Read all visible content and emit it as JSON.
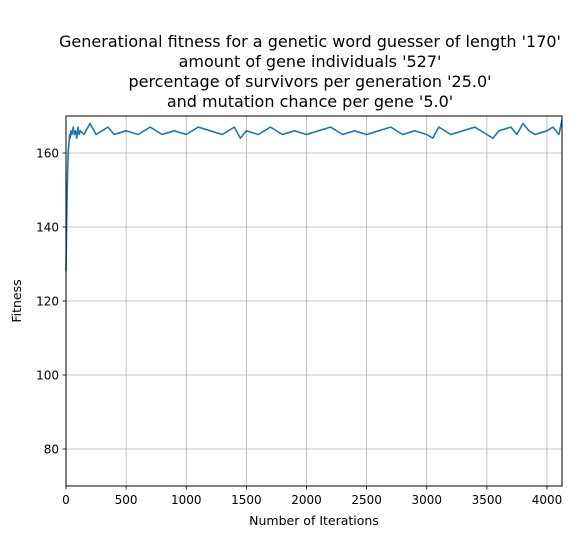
{
  "chart_data": {
    "type": "line",
    "title_lines": [
      "Generational fitness for a genetic word guesser of length '170'",
      "amount of gene individuals '527'",
      "percentage of survivors per generation '25.0'",
      "and mutation chance per gene '5.0'"
    ],
    "xlabel": "Number of Iterations",
    "ylabel": "Fitness",
    "xlim": [
      0,
      4125
    ],
    "ylim": [
      70,
      170
    ],
    "xticks": [
      0,
      500,
      1000,
      1500,
      2000,
      2500,
      3000,
      3500,
      4000
    ],
    "yticks": [
      80,
      100,
      120,
      140,
      160
    ],
    "grid": true,
    "series": [
      {
        "color": "#1f77b4",
        "x": [
          0,
          5,
          10,
          15,
          20,
          25,
          30,
          35,
          40,
          50,
          60,
          70,
          80,
          90,
          100,
          110,
          120,
          150,
          200,
          250,
          300,
          350,
          400,
          500,
          600,
          700,
          800,
          900,
          1000,
          1100,
          1200,
          1300,
          1400,
          1450,
          1500,
          1600,
          1700,
          1800,
          1900,
          2000,
          2100,
          2200,
          2300,
          2400,
          2500,
          2600,
          2700,
          2800,
          2900,
          3000,
          3050,
          3100,
          3200,
          3300,
          3400,
          3500,
          3550,
          3600,
          3700,
          3750,
          3800,
          3850,
          3900,
          4000,
          4050,
          4100,
          4125
        ],
        "y": [
          128,
          140,
          150,
          157,
          161,
          163,
          165,
          164,
          166,
          165,
          167,
          165,
          166,
          164,
          167,
          165,
          166,
          165,
          168,
          165,
          166,
          167,
          165,
          166,
          165,
          167,
          165,
          166,
          165,
          167,
          166,
          165,
          167,
          164,
          166,
          165,
          167,
          165,
          166,
          165,
          166,
          167,
          165,
          166,
          165,
          166,
          167,
          165,
          166,
          165,
          164,
          167,
          165,
          166,
          167,
          165,
          164,
          166,
          167,
          165,
          168,
          166,
          165,
          166,
          167,
          165,
          169
        ]
      }
    ]
  }
}
